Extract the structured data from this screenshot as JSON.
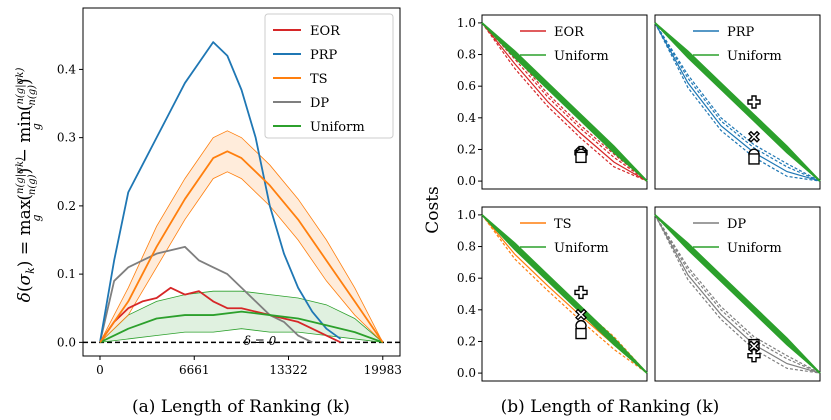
{
  "colors": {
    "EOR": "#d62728",
    "PRP": "#1f77b4",
    "TS": "#ff7f0e",
    "DP": "#7f7f7f",
    "Uniform": "#2ca02c"
  },
  "chart_data": [
    {
      "id": "a",
      "type": "line",
      "caption": "(a) Length of Ranking (k)",
      "ylabel": "δ(σ_k) = max_g (n(g|σ_k)/n(g)) − min_g (n(g|σ_k)/n(g))",
      "annotation": "δ = 0",
      "xlim": [
        -1200,
        21200
      ],
      "ylim": [
        -0.02,
        0.49
      ],
      "xticks": [
        0,
        6661,
        13322,
        19983
      ],
      "yticks": [
        0.0,
        0.1,
        0.2,
        0.3,
        0.4
      ],
      "ytick_labels": [
        "0.0",
        "0.1",
        "0.2",
        "0.3",
        "0.4"
      ],
      "legend": [
        "EOR",
        "PRP",
        "TS",
        "DP",
        "Uniform"
      ],
      "legend_position": "top-right",
      "series": [
        {
          "name": "EOR",
          "x": [
            0,
            1000,
            2000,
            3000,
            4000,
            5000,
            6000,
            7000,
            8000,
            9000,
            10000,
            11000,
            12000,
            13000,
            14000,
            15000,
            16000,
            17000
          ],
          "y": [
            0,
            0.03,
            0.05,
            0.06,
            0.065,
            0.08,
            0.07,
            0.075,
            0.06,
            0.05,
            0.05,
            0.045,
            0.04,
            0.035,
            0.03,
            0.02,
            0.01,
            0
          ]
        },
        {
          "name": "PRP",
          "x": [
            0,
            1000,
            2000,
            3000,
            4000,
            5000,
            6000,
            7000,
            8000,
            9000,
            10000,
            11000,
            12000,
            13000,
            14000,
            15000,
            16000,
            17000
          ],
          "y": [
            0,
            0.12,
            0.22,
            0.26,
            0.3,
            0.34,
            0.38,
            0.41,
            0.44,
            0.42,
            0.37,
            0.3,
            0.2,
            0.13,
            0.08,
            0.045,
            0.02,
            0.005
          ]
        },
        {
          "name": "TS",
          "x": [
            0,
            2000,
            4000,
            6000,
            8000,
            9000,
            10000,
            12000,
            14000,
            16000,
            18000,
            19983
          ],
          "y": [
            0,
            0.06,
            0.14,
            0.21,
            0.27,
            0.28,
            0.27,
            0.23,
            0.18,
            0.12,
            0.06,
            0
          ]
        },
        {
          "name": "TS band upper",
          "x": [
            0,
            2000,
            4000,
            6000,
            8000,
            9000,
            10000,
            12000,
            14000,
            16000,
            18000,
            19983
          ],
          "y": [
            0,
            0.08,
            0.17,
            0.24,
            0.3,
            0.31,
            0.3,
            0.26,
            0.21,
            0.15,
            0.08,
            0
          ]
        },
        {
          "name": "TS band lower",
          "x": [
            0,
            2000,
            4000,
            6000,
            8000,
            9000,
            10000,
            12000,
            14000,
            16000,
            18000,
            19983
          ],
          "y": [
            0,
            0.04,
            0.11,
            0.18,
            0.24,
            0.25,
            0.24,
            0.2,
            0.15,
            0.09,
            0.04,
            0
          ]
        },
        {
          "name": "DP",
          "x": [
            0,
            1000,
            2000,
            3000,
            4000,
            5000,
            6000,
            7000,
            8000,
            9000,
            10000,
            11000,
            12000,
            13000,
            14000,
            15000
          ],
          "y": [
            0,
            0.09,
            0.11,
            0.12,
            0.13,
            0.135,
            0.14,
            0.12,
            0.11,
            0.1,
            0.08,
            0.06,
            0.04,
            0.03,
            0.01,
            0
          ]
        },
        {
          "name": "Uniform",
          "x": [
            0,
            2000,
            4000,
            6000,
            8000,
            10000,
            12000,
            14000,
            16000,
            18000,
            19983
          ],
          "y": [
            0,
            0.02,
            0.035,
            0.04,
            0.04,
            0.045,
            0.04,
            0.035,
            0.025,
            0.015,
            0
          ]
        },
        {
          "name": "Uniform band upper",
          "x": [
            0,
            2000,
            4000,
            6000,
            8000,
            10000,
            12000,
            14000,
            16000,
            18000,
            19983
          ],
          "y": [
            0,
            0.04,
            0.06,
            0.07,
            0.075,
            0.075,
            0.07,
            0.065,
            0.055,
            0.035,
            0
          ]
        },
        {
          "name": "Uniform band lower",
          "x": [
            0,
            2000,
            4000,
            6000,
            8000,
            10000,
            12000,
            14000,
            16000,
            18000,
            19983
          ],
          "y": [
            0,
            0.005,
            0.01,
            0.015,
            0.015,
            0.02,
            0.015,
            0.015,
            0.01,
            0.005,
            0
          ]
        }
      ]
    },
    {
      "id": "b",
      "type": "line",
      "caption": "(b)  Length of Ranking (k)",
      "ylabel": "Costs",
      "ylim": [
        0,
        1
      ],
      "yticks": [
        0.0,
        0.2,
        0.4,
        0.6,
        0.8,
        1.0
      ],
      "ytick_labels": [
        "0.0",
        "0.2",
        "0.4",
        "0.6",
        "0.8",
        "1.0"
      ],
      "panels": [
        {
          "method": "EOR",
          "legend": [
            "EOR",
            "Uniform"
          ],
          "uniform_y": [
            1,
            0.8,
            0.6,
            0.4,
            0.2,
            0
          ],
          "method_y": [
            1,
            0.74,
            0.5,
            0.3,
            0.12,
            0
          ],
          "markers": [
            {
              "symbol": "plus",
              "y": 0.18
            },
            {
              "symbol": "cross",
              "y": 0.18
            },
            {
              "symbol": "circle",
              "y": 0.17
            },
            {
              "symbol": "square",
              "y": 0.15
            }
          ],
          "marker_x": 0.6
        },
        {
          "method": "PRP",
          "legend": [
            "PRP",
            "Uniform"
          ],
          "uniform_y": [
            1,
            0.8,
            0.6,
            0.4,
            0.2,
            0
          ],
          "method_y": [
            1,
            0.62,
            0.35,
            0.18,
            0.06,
            0
          ],
          "markers": [
            {
              "symbol": "plus",
              "y": 0.5
            },
            {
              "symbol": "cross",
              "y": 0.28
            },
            {
              "symbol": "circle",
              "y": 0.17
            },
            {
              "symbol": "square",
              "y": 0.14
            }
          ],
          "marker_x": 0.6
        },
        {
          "method": "TS",
          "legend": [
            "TS",
            "Uniform"
          ],
          "uniform_y": [
            1,
            0.8,
            0.6,
            0.4,
            0.2,
            0
          ],
          "method_y": [
            1,
            0.75,
            0.55,
            0.36,
            0.18,
            0
          ],
          "markers": [
            {
              "symbol": "plus",
              "y": 0.51
            },
            {
              "symbol": "cross",
              "y": 0.37
            },
            {
              "symbol": "circle",
              "y": 0.3
            },
            {
              "symbol": "square",
              "y": 0.25
            }
          ],
          "marker_x": 0.6
        },
        {
          "method": "DP",
          "legend": [
            "DP",
            "Uniform"
          ],
          "uniform_y": [
            1,
            0.8,
            0.6,
            0.4,
            0.2,
            0
          ],
          "method_y": [
            1,
            0.62,
            0.37,
            0.18,
            0.06,
            0
          ],
          "markers": [
            {
              "symbol": "square",
              "y": 0.18
            },
            {
              "symbol": "cross",
              "y": 0.17
            },
            {
              "symbol": "plus",
              "y": 0.11
            }
          ],
          "marker_x": 0.6
        }
      ]
    }
  ]
}
